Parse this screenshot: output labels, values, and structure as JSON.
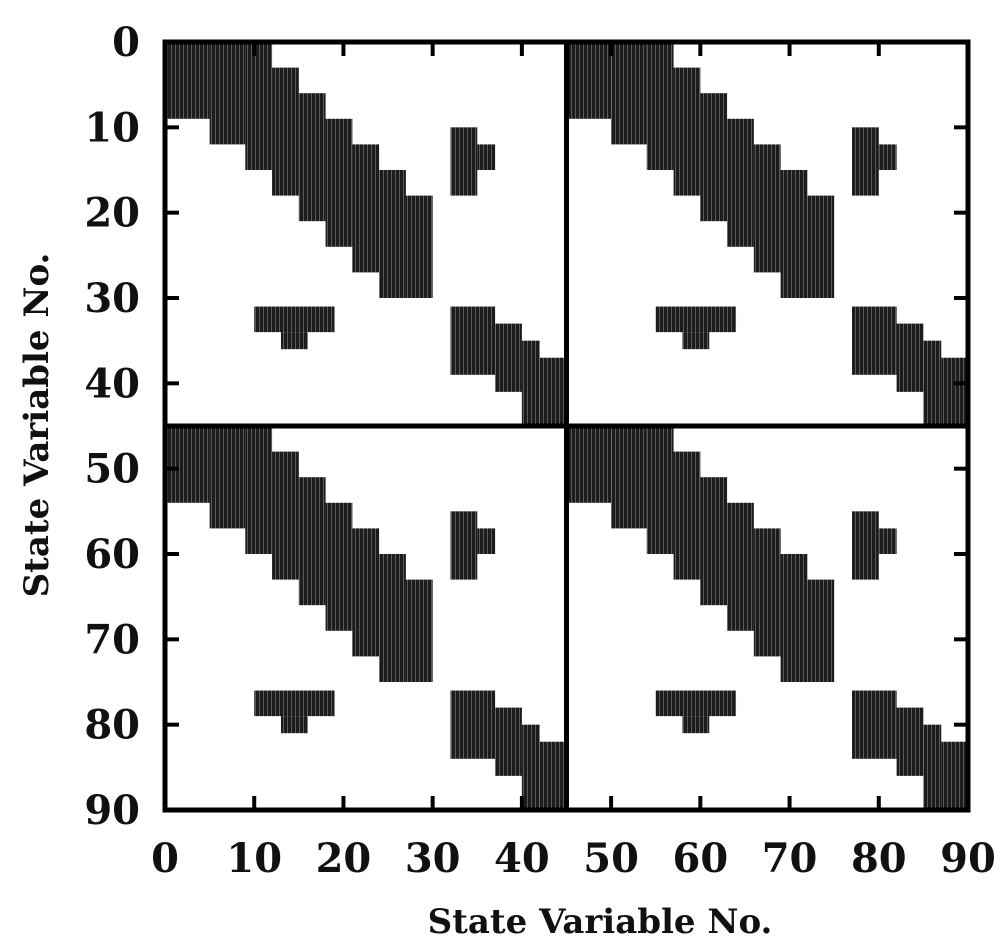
{
  "chart_data": {
    "type": "heatmap",
    "title": "",
    "xlabel": "State Variable No.",
    "ylabel": "State Variable No.",
    "xlim": [
      0,
      90
    ],
    "ylim": [
      0,
      90
    ],
    "y_inverted": true,
    "grid": false,
    "legend": "none",
    "x_ticks": [
      0,
      10,
      20,
      30,
      40,
      50,
      60,
      70,
      80,
      90
    ],
    "y_ticks": [
      0,
      10,
      20,
      30,
      40,
      50,
      60,
      70,
      80,
      90
    ],
    "x_tick_labels": [
      "0",
      "10",
      "20",
      "30",
      "40",
      "50",
      "60",
      "70",
      "80",
      "90"
    ],
    "y_tick_labels": [
      "0",
      "10",
      "20",
      "30",
      "40",
      "50",
      "60",
      "70",
      "80",
      "90"
    ],
    "block_size": 45,
    "block_dividers": [
      45
    ],
    "block_pattern": {
      "description": "non-zero sparsity pattern repeated in each of the four 45x45 blocks; cells given as [row_start,row_end,col_start,col_end] in block-local state variable numbers",
      "cells": [
        [
          0,
          9,
          0,
          5
        ],
        [
          0,
          12,
          5,
          9
        ],
        [
          0,
          15,
          9,
          12
        ],
        [
          3,
          18,
          12,
          15
        ],
        [
          6,
          21,
          15,
          18
        ],
        [
          9,
          24,
          18,
          21
        ],
        [
          12,
          27,
          21,
          24
        ],
        [
          15,
          30,
          24,
          27
        ],
        [
          18,
          30,
          27,
          30
        ],
        [
          10,
          18,
          32,
          35
        ],
        [
          12,
          15,
          35,
          37
        ],
        [
          31,
          34,
          10,
          19
        ],
        [
          34,
          36,
          13,
          16
        ],
        [
          31,
          39,
          32,
          37
        ],
        [
          33,
          41,
          37,
          40
        ],
        [
          35,
          45,
          40,
          42
        ],
        [
          37,
          45,
          42,
          45
        ]
      ]
    },
    "colors": {
      "nonzero": "#1c1c1c",
      "background": "#ffffff",
      "frame": "#000000"
    }
  }
}
